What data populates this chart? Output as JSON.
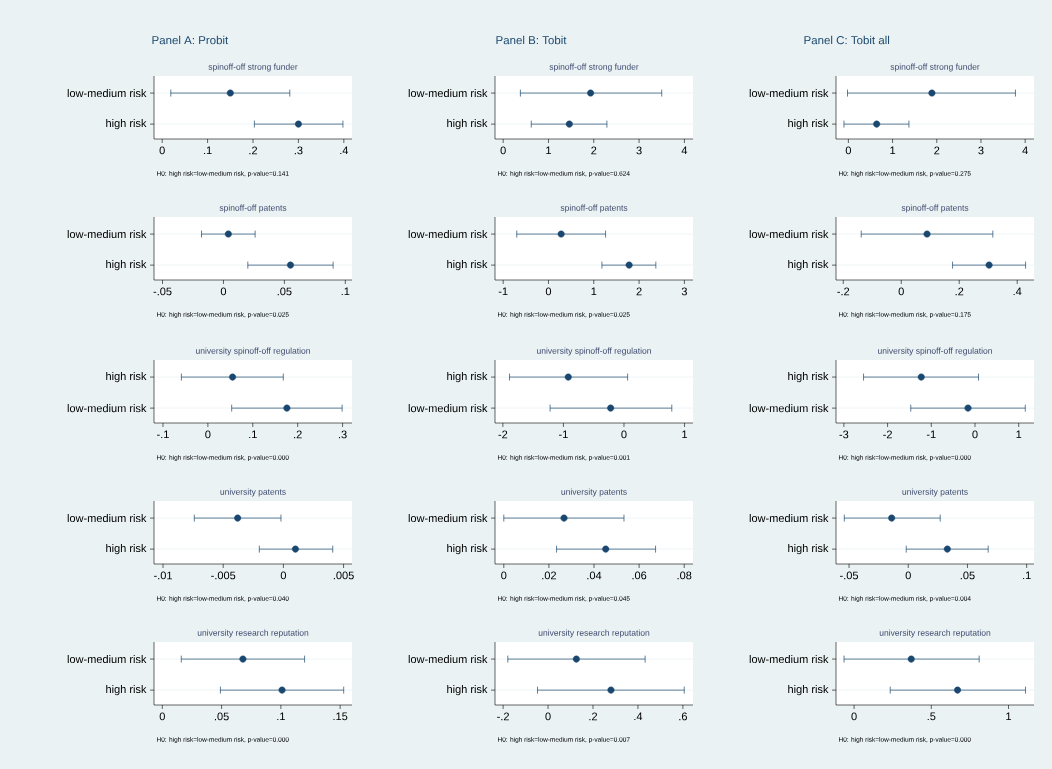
{
  "chart_data": [
    {
      "type": "scatter",
      "orientation": "horizontal",
      "title": "Panel A: Probit",
      "subtitle": "spinoff-off strong funder",
      "categories": [
        "low-medium risk",
        "high risk"
      ],
      "values": [
        0.15,
        0.3
      ],
      "errors": [
        [
          0.019,
          0.281
        ],
        [
          0.203,
          0.398
        ]
      ],
      "color": "#1a476f",
      "marker": "circle",
      "grid": "y",
      "xlim": [
        -0.018,
        0.418
      ],
      "xticks": [
        0,
        {
          "value": 0.1,
          "label": ".1"
        },
        {
          "value": 0.2,
          "label": ".2"
        },
        {
          "value": 0.3,
          "label": ".3"
        },
        {
          "value": 0.4,
          "label": ".4"
        }
      ],
      "annotations": [
        "H0: high risk=low-medium risk, p-value=0.141"
      ]
    },
    {
      "type": "scatter",
      "orientation": "horizontal",
      "title": "Panel B: Tobit",
      "subtitle": "spinoff-off strong funder",
      "categories": [
        "low-medium risk",
        "high risk"
      ],
      "values": [
        1.93,
        1.46
      ],
      "errors": [
        [
          0.38,
          3.5
        ],
        [
          0.62,
          2.29
        ]
      ],
      "color": "#1a476f",
      "marker": "circle",
      "grid": "y",
      "xlim": [
        -0.18,
        4.19
      ],
      "xticks": [
        0,
        1,
        2,
        3,
        4
      ],
      "annotations": [
        "H0: high risk=low-medium risk, p-value=0.624"
      ]
    },
    {
      "type": "scatter",
      "orientation": "horizontal",
      "title": "Panel C: Tobit all",
      "subtitle": "spinoff-off strong funder",
      "categories": [
        "low-medium risk",
        "high risk"
      ],
      "values": [
        1.89,
        0.64
      ],
      "errors": [
        [
          -0.02,
          3.78
        ],
        [
          -0.1,
          1.37
        ]
      ],
      "color": "#1a476f",
      "marker": "circle",
      "grid": "y",
      "xlim": [
        -0.28,
        4.2
      ],
      "xticks": [
        0,
        1,
        2,
        3,
        4
      ],
      "annotations": [
        "H0: high risk=low-medium risk, p-value=0.275"
      ]
    },
    {
      "type": "scatter",
      "orientation": "horizontal",
      "title": "spinoff-off patents",
      "categories": [
        "low-medium risk",
        "high risk"
      ],
      "values": [
        0.004,
        0.055
      ],
      "errors": [
        [
          -0.018,
          0.026
        ],
        [
          0.02,
          0.09
        ]
      ],
      "color": "#1a476f",
      "marker": "circle",
      "grid": "y",
      "xlim": [
        -0.057,
        0.1055
      ],
      "xticks": [
        {
          "value": -0.05,
          "label": "-.05"
        },
        0,
        {
          "value": 0.05,
          "label": ".05"
        },
        {
          "value": 0.1,
          "label": ".1"
        }
      ],
      "annotations": [
        "H0: high risk=low-medium risk, p-value=0.025"
      ]
    },
    {
      "type": "scatter",
      "orientation": "horizontal",
      "title": "spinoff-off patents",
      "categories": [
        "low-medium risk",
        "high risk"
      ],
      "values": [
        0.28,
        1.78
      ],
      "errors": [
        [
          -0.7,
          1.26
        ],
        [
          1.18,
          2.37
        ]
      ],
      "color": "#1a476f",
      "marker": "circle",
      "grid": "y",
      "xlim": [
        -1.18,
        3.19
      ],
      "xticks": [
        -1,
        0,
        1,
        2,
        3
      ],
      "annotations": [
        "H0: high risk=low-medium risk, p-value=0.025"
      ]
    },
    {
      "type": "scatter",
      "orientation": "horizontal",
      "title": "spinoff-off patents",
      "categories": [
        "low-medium risk",
        "high risk"
      ],
      "values": [
        0.089,
        0.303
      ],
      "errors": [
        [
          -0.138,
          0.316
        ],
        [
          0.177,
          0.429
        ]
      ],
      "color": "#1a476f",
      "marker": "circle",
      "grid": "y",
      "xlim": [
        -0.225,
        0.458
      ],
      "xticks": [
        {
          "value": -0.2,
          "label": "-.2"
        },
        0,
        {
          "value": 0.2,
          "label": ".2"
        },
        {
          "value": 0.4,
          "label": ".4"
        }
      ],
      "annotations": [
        "H0: high risk=low-medium risk, p-value=0.175"
      ]
    },
    {
      "type": "scatter",
      "orientation": "horizontal",
      "title": "university spinoff-off regulation",
      "categories": [
        "high risk",
        "low-medium risk"
      ],
      "values": [
        0.055,
        0.176
      ],
      "errors": [
        [
          -0.059,
          0.168
        ],
        [
          0.053,
          0.299
        ]
      ],
      "color": "#1a476f",
      "marker": "circle",
      "grid": "y",
      "xlim": [
        -0.12,
        0.321
      ],
      "xticks": [
        {
          "value": -0.1,
          "label": "-.1"
        },
        0,
        {
          "value": 0.1,
          "label": ".1"
        },
        {
          "value": 0.2,
          "label": ".2"
        },
        {
          "value": 0.3,
          "label": ".3"
        }
      ],
      "annotations": [
        "H0: high risk=low-medium risk, p-value=0.000"
      ]
    },
    {
      "type": "scatter",
      "orientation": "horizontal",
      "title": "university spinoff-off regulation",
      "categories": [
        "high risk",
        "low-medium risk"
      ],
      "values": [
        -0.92,
        -0.22
      ],
      "errors": [
        [
          -1.89,
          0.06
        ],
        [
          -1.22,
          0.79
        ]
      ],
      "color": "#1a476f",
      "marker": "circle",
      "grid": "y",
      "xlim": [
        -2.13,
        1.14
      ],
      "xticks": [
        -2,
        -1,
        0,
        1
      ],
      "annotations": [
        "H0: high risk=low-medium risk, p-value=0.001"
      ]
    },
    {
      "type": "scatter",
      "orientation": "horizontal",
      "title": "university spinoff-off regulation",
      "categories": [
        "high risk",
        "low-medium risk"
      ],
      "values": [
        -1.23,
        -0.16
      ],
      "errors": [
        [
          -2.55,
          0.08
        ],
        [
          -1.47,
          1.15
        ]
      ],
      "color": "#1a476f",
      "marker": "circle",
      "grid": "y",
      "xlim": [
        -3.18,
        1.35
      ],
      "xticks": [
        -3,
        -2,
        -1,
        0,
        1
      ],
      "annotations": [
        "H0: high risk=low-medium risk, p-value=0.000"
      ]
    },
    {
      "type": "scatter",
      "orientation": "horizontal",
      "title": "university patents",
      "categories": [
        "low-medium risk",
        "high risk"
      ],
      "values": [
        -0.0038,
        0.001
      ],
      "errors": [
        [
          -0.0074,
          -0.0002
        ],
        [
          -0.002,
          0.0041
        ]
      ],
      "color": "#1a476f",
      "marker": "circle",
      "grid": "y",
      "xlim": [
        -0.01075,
        0.0057
      ],
      "xticks": [
        {
          "value": -0.01,
          "label": "-.01"
        },
        {
          "value": -0.005,
          "label": "-.005"
        },
        0,
        {
          "value": 0.005,
          "label": ".005"
        }
      ],
      "annotations": [
        "H0: high risk=low-medium risk, p-value=0.040"
      ]
    },
    {
      "type": "scatter",
      "orientation": "horizontal",
      "title": "university patents",
      "categories": [
        "low-medium risk",
        "high risk"
      ],
      "values": [
        0.0267,
        0.0452
      ],
      "errors": [
        [
          0.0,
          0.0533
        ],
        [
          0.0234,
          0.0673
        ]
      ],
      "color": "#1a476f",
      "marker": "circle",
      "grid": "y",
      "xlim": [
        -0.0039,
        0.0839
      ],
      "xticks": [
        0,
        {
          "value": 0.02,
          "label": ".02"
        },
        {
          "value": 0.04,
          "label": ".04"
        },
        {
          "value": 0.06,
          "label": ".06"
        },
        {
          "value": 0.08,
          "label": ".08"
        }
      ],
      "annotations": [
        "H0: high risk=low-medium risk, p-value=0.045"
      ]
    },
    {
      "type": "scatter",
      "orientation": "horizontal",
      "title": "university patents",
      "categories": [
        "low-medium risk",
        "high risk"
      ],
      "values": [
        -0.014,
        0.033
      ],
      "errors": [
        [
          -0.054,
          0.027
        ],
        [
          -0.0017,
          0.0675
        ]
      ],
      "color": "#1a476f",
      "marker": "circle",
      "grid": "y",
      "xlim": [
        -0.061,
        0.1062
      ],
      "xticks": [
        {
          "value": -0.05,
          "label": "-.05"
        },
        0,
        {
          "value": 0.05,
          "label": ".05"
        },
        {
          "value": 0.1,
          "label": ".1"
        }
      ],
      "annotations": [
        "H0: high risk=low-medium risk, p-value=0.004"
      ]
    },
    {
      "type": "scatter",
      "orientation": "horizontal",
      "title": "university research reputation",
      "categories": [
        "low-medium risk",
        "high risk"
      ],
      "values": [
        0.068,
        0.101
      ],
      "errors": [
        [
          0.016,
          0.12
        ],
        [
          0.049,
          0.153
        ]
      ],
      "color": "#1a476f",
      "marker": "circle",
      "grid": "y",
      "xlim": [
        -0.007,
        0.16
      ],
      "xticks": [
        0,
        {
          "value": 0.05,
          "label": ".05"
        },
        {
          "value": 0.1,
          "label": ".1"
        },
        {
          "value": 0.15,
          "label": ".15"
        }
      ],
      "annotations": [
        "H0: high risk=low-medium risk, p-value=0.000"
      ]
    },
    {
      "type": "scatter",
      "orientation": "horizontal",
      "title": "university research reputation",
      "categories": [
        "low-medium risk",
        "high risk"
      ],
      "values": [
        0.126,
        0.28
      ],
      "errors": [
        [
          -0.179,
          0.432
        ],
        [
          -0.047,
          0.606
        ]
      ],
      "color": "#1a476f",
      "marker": "circle",
      "grid": "y",
      "xlim": [
        -0.236,
        0.645
      ],
      "xticks": [
        {
          "value": -0.2,
          "label": "-.2"
        },
        0,
        {
          "value": 0.2,
          "label": ".2"
        },
        {
          "value": 0.4,
          "label": ".4"
        },
        {
          "value": 0.6,
          "label": ".6"
        }
      ],
      "annotations": [
        "H0: high risk=low-medium risk, p-value=0.007"
      ]
    },
    {
      "type": "scatter",
      "orientation": "horizontal",
      "title": "university research reputation",
      "categories": [
        "low-medium risk",
        "high risk"
      ],
      "values": [
        0.37,
        0.67
      ],
      "errors": [
        [
          -0.065,
          0.81
        ],
        [
          0.234,
          1.11
        ]
      ],
      "color": "#1a476f",
      "marker": "circle",
      "grid": "y",
      "xlim": [
        -0.117,
        1.165
      ],
      "xticks": [
        0,
        {
          "value": 0.5,
          "label": ".5"
        },
        1
      ],
      "annotations": [
        "H0: high risk=low-medium risk, p-value=0.000"
      ]
    }
  ]
}
